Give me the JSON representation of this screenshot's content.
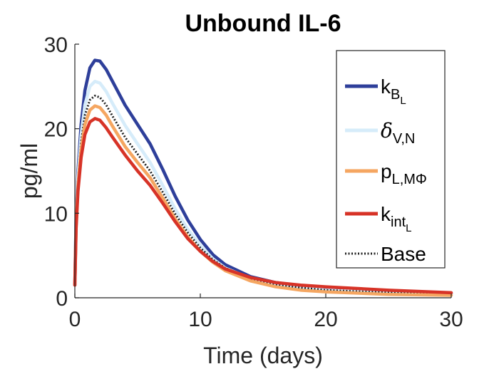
{
  "chart_data": {
    "type": "line",
    "title": "Unbound IL-6",
    "xlabel": "Time (days)",
    "ylabel": "pg/ml",
    "xlim": [
      0,
      30
    ],
    "ylim": [
      0,
      30
    ],
    "xticks": [
      0,
      10,
      20,
      30
    ],
    "yticks": [
      0,
      10,
      20,
      30
    ],
    "grid": false,
    "legend_position": "top-right",
    "series": [
      {
        "name": "k_B_L",
        "legend_parts": [
          "k",
          "B",
          "L"
        ],
        "color": "#2E3F9A",
        "style": "solid",
        "x": [
          0,
          0.1,
          0.25,
          0.5,
          0.8,
          1.2,
          1.6,
          2.0,
          2.5,
          3.0,
          4.0,
          5.0,
          6.0,
          7.0,
          8.0,
          9.0,
          10.0,
          11.0,
          12.0,
          14.0,
          16.0,
          18.0,
          20.0,
          25.0,
          30.0
        ],
        "y": [
          1.5,
          9.5,
          15.0,
          20.5,
          24.5,
          27.2,
          28.1,
          28.0,
          27.0,
          25.6,
          22.8,
          20.5,
          18.2,
          15.2,
          12.0,
          9.2,
          6.9,
          5.1,
          3.9,
          2.5,
          1.8,
          1.4,
          1.1,
          0.7,
          0.5
        ]
      },
      {
        "name": "δ_V,N",
        "legend_parts": [
          "δ",
          "V,N"
        ],
        "color": "#D6ECFA",
        "style": "solid",
        "x": [
          0,
          0.1,
          0.25,
          0.5,
          0.8,
          1.2,
          1.6,
          2.0,
          2.5,
          3.0,
          4.0,
          5.0,
          6.0,
          7.0,
          8.0,
          9.0,
          10.0,
          11.0,
          12.0,
          14.0,
          16.0,
          18.0,
          20.0,
          25.0,
          30.0
        ],
        "y": [
          1.5,
          9.0,
          14.2,
          19.2,
          22.8,
          25.0,
          25.6,
          25.4,
          24.4,
          23.0,
          20.4,
          18.2,
          16.0,
          13.3,
          10.5,
          8.1,
          6.2,
          4.6,
          3.5,
          2.3,
          1.6,
          1.2,
          0.9,
          0.6,
          0.4
        ]
      },
      {
        "name": "Base",
        "legend_parts": [
          "Base"
        ],
        "color": "#222222",
        "style": "dotted",
        "x": [
          0,
          0.1,
          0.25,
          0.5,
          0.8,
          1.2,
          1.6,
          2.0,
          2.5,
          3.0,
          4.0,
          5.0,
          6.0,
          7.0,
          8.0,
          9.0,
          10.0,
          11.0,
          12.0,
          14.0,
          16.0,
          18.0,
          20.0,
          25.0,
          30.0
        ],
        "y": [
          1.5,
          8.8,
          13.8,
          18.4,
          21.6,
          23.4,
          23.9,
          23.7,
          22.8,
          21.5,
          19.0,
          17.0,
          15.0,
          12.5,
          9.9,
          7.7,
          5.9,
          4.5,
          3.5,
          2.3,
          1.6,
          1.2,
          0.9,
          0.6,
          0.4
        ]
      },
      {
        "name": "p_L,MΦ",
        "legend_parts": [
          "p",
          "L,MΦ"
        ],
        "color": "#F5A661",
        "style": "solid",
        "x": [
          0,
          0.1,
          0.25,
          0.5,
          0.8,
          1.2,
          1.6,
          2.0,
          2.5,
          3.0,
          4.0,
          5.0,
          6.0,
          7.0,
          8.0,
          9.0,
          10.0,
          11.0,
          12.0,
          14.0,
          16.0,
          18.0,
          20.0,
          25.0,
          30.0
        ],
        "y": [
          1.5,
          8.5,
          13.2,
          17.5,
          20.5,
          22.2,
          22.7,
          22.5,
          21.6,
          20.3,
          17.9,
          16.0,
          14.2,
          11.8,
          9.3,
          7.2,
          5.5,
          4.2,
          3.2,
          2.0,
          1.3,
          0.9,
          0.7,
          0.4,
          0.3
        ]
      },
      {
        "name": "k_int_L",
        "legend_parts": [
          "k",
          "int",
          "L"
        ],
        "color": "#D73327",
        "style": "solid",
        "x": [
          0,
          0.1,
          0.25,
          0.5,
          0.8,
          1.2,
          1.6,
          2.0,
          2.5,
          3.0,
          4.0,
          5.0,
          6.0,
          7.0,
          8.0,
          9.0,
          10.0,
          11.0,
          12.0,
          14.0,
          16.0,
          18.0,
          20.0,
          25.0,
          30.0
        ],
        "y": [
          1.5,
          8.2,
          12.6,
          16.6,
          19.3,
          20.8,
          21.2,
          21.0,
          20.1,
          19.0,
          16.9,
          15.0,
          13.3,
          11.2,
          9.0,
          7.0,
          5.5,
          4.3,
          3.4,
          2.4,
          1.8,
          1.5,
          1.3,
          0.9,
          0.6
        ]
      }
    ],
    "legend_order": [
      "k_B_L",
      "δ_V,N",
      "p_L,MΦ",
      "k_int_L",
      "Base"
    ]
  }
}
